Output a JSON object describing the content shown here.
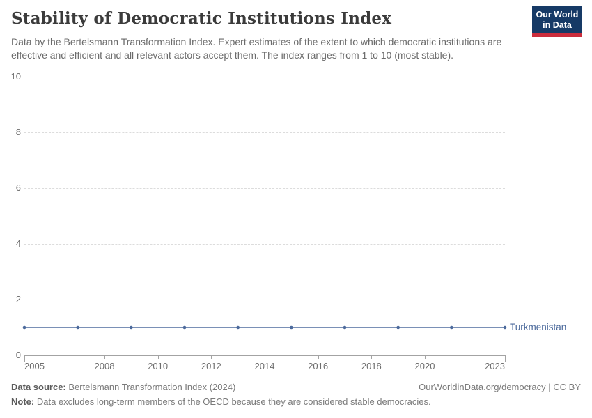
{
  "header": {
    "title": "Stability of Democratic Institutions Index",
    "subtitle": "Data by the Bertelsmann Transformation Index. Expert estimates of the extent to which democratic institutions are effective and efficient and all relevant actors accept them. The index ranges from 1 to 10 (most stable).",
    "logo": {
      "line1": "Our World",
      "line2": "in Data",
      "bg_color": "#163a66",
      "accent_color": "#cb2d3c"
    }
  },
  "chart_data": {
    "type": "line",
    "title": "Stability of Democratic Institutions Index",
    "xlabel": "",
    "ylabel": "",
    "x": [
      2005,
      2007,
      2009,
      2011,
      2013,
      2015,
      2017,
      2019,
      2021,
      2023
    ],
    "series": [
      {
        "name": "Turkmenistan",
        "values": [
          1,
          1,
          1,
          1,
          1,
          1,
          1,
          1,
          1,
          1
        ],
        "color": "#4c6a9c"
      }
    ],
    "xlim": [
      2005,
      2023
    ],
    "ylim": [
      0,
      10
    ],
    "yticks": [
      0,
      2,
      4,
      6,
      8,
      10
    ],
    "xticks": [
      2005,
      2008,
      2010,
      2012,
      2014,
      2016,
      2018,
      2020,
      2023
    ],
    "grid": "horizontal-dashed",
    "legend_position": "end-of-line"
  },
  "footer": {
    "datasource_label": "Data source:",
    "datasource_value": "Bertelsmann Transformation Index (2024)",
    "credit": "OurWorldinData.org/democracy | CC BY",
    "note_label": "Note:",
    "note_value": "Data excludes long-term members of the OECD because they are considered stable democracies."
  }
}
